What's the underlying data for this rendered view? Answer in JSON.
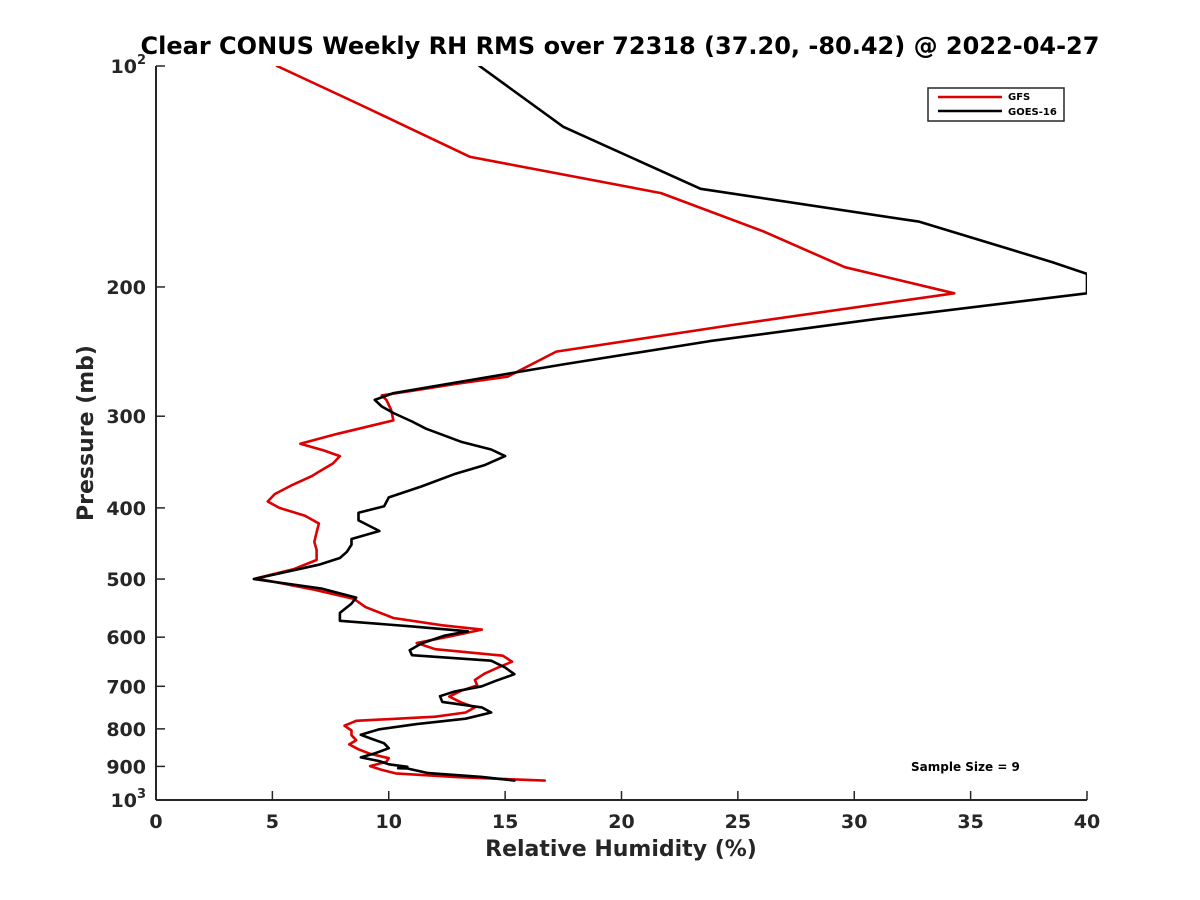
{
  "chart_data": {
    "type": "line",
    "title": "Clear CONUS Weekly RH RMS over 72318 (37.20, -80.42) @ 2022-04-27",
    "xlabel": "Relative Humidity (%)",
    "ylabel": "Pressure (mb)",
    "xlim": [
      0,
      40
    ],
    "ylim": [
      100,
      1000
    ],
    "y_scale": "log",
    "y_reversed": true,
    "x_ticks": [
      0,
      5,
      10,
      15,
      20,
      25,
      30,
      35,
      40
    ],
    "x_tick_labels": [
      "0",
      "5",
      "10",
      "15",
      "20",
      "25",
      "30",
      "35",
      "40"
    ],
    "y_ticks": [
      100,
      200,
      300,
      400,
      500,
      600,
      700,
      800,
      900,
      1000
    ],
    "y_tick_labels": [
      {
        "base": "10",
        "exp": "2"
      },
      {
        "base": "200",
        "exp": ""
      },
      {
        "base": "300",
        "exp": ""
      },
      {
        "base": "400",
        "exp": ""
      },
      {
        "base": "500",
        "exp": ""
      },
      {
        "base": "600",
        "exp": ""
      },
      {
        "base": "700",
        "exp": ""
      },
      {
        "base": "800",
        "exp": ""
      },
      {
        "base": "900",
        "exp": ""
      },
      {
        "base": "10",
        "exp": "3"
      }
    ],
    "grid": false,
    "legend_position": "top-right",
    "series": [
      {
        "name": "GFS",
        "color": "#dd0000",
        "points": [
          [
            16.7,
            941
          ],
          [
            13.0,
            931
          ],
          [
            10.3,
            920
          ],
          [
            9.7,
            910
          ],
          [
            9.2,
            899
          ],
          [
            9.9,
            887
          ],
          [
            10.0,
            877
          ],
          [
            9.2,
            865
          ],
          [
            8.7,
            853
          ],
          [
            8.3,
            840
          ],
          [
            8.6,
            829
          ],
          [
            8.4,
            816
          ],
          [
            8.4,
            804
          ],
          [
            8.1,
            792
          ],
          [
            8.6,
            780
          ],
          [
            12.0,
            770
          ],
          [
            13.3,
            760
          ],
          [
            13.7,
            748
          ],
          [
            13.1,
            736
          ],
          [
            12.6,
            723
          ],
          [
            13.1,
            710
          ],
          [
            13.8,
            698
          ],
          [
            13.7,
            686
          ],
          [
            14.1,
            673
          ],
          [
            14.7,
            660
          ],
          [
            15.3,
            648
          ],
          [
            14.9,
            636
          ],
          [
            12.0,
            623
          ],
          [
            11.2,
            611
          ],
          [
            12.7,
            598
          ],
          [
            14.0,
            586
          ],
          [
            12.3,
            578
          ],
          [
            10.2,
            565
          ],
          [
            9.0,
            546
          ],
          [
            8.5,
            532
          ],
          [
            6.8,
            517
          ],
          [
            4.3,
            499
          ],
          [
            5.9,
            485
          ],
          [
            6.9,
            471
          ],
          [
            6.9,
            456
          ],
          [
            6.8,
            445
          ],
          [
            6.9,
            432
          ],
          [
            7.0,
            420
          ],
          [
            6.4,
            410
          ],
          [
            5.3,
            400
          ],
          [
            4.8,
            392
          ],
          [
            5.1,
            383
          ],
          [
            5.8,
            373
          ],
          [
            6.7,
            362
          ],
          [
            7.0,
            357
          ],
          [
            7.6,
            348
          ],
          [
            7.9,
            340
          ],
          [
            7.2,
            334
          ],
          [
            6.2,
            327
          ],
          [
            7.8,
            317
          ],
          [
            10.2,
            304
          ],
          [
            10.1,
            294
          ],
          [
            9.9,
            285
          ],
          [
            9.7,
            281
          ],
          [
            11.0,
            277
          ],
          [
            12.9,
            271
          ],
          [
            15.1,
            265
          ],
          [
            17.2,
            245
          ],
          [
            24.9,
            225
          ],
          [
            34.3,
            204
          ],
          [
            29.6,
            188
          ],
          [
            26.1,
            168
          ],
          [
            21.7,
            149
          ],
          [
            13.5,
            133
          ],
          [
            8.8,
            113
          ],
          [
            5.2,
            100
          ]
        ]
      },
      {
        "name": "GOES-16",
        "color": "#000000",
        "points": [
          [
            15.4,
            941
          ],
          [
            14.0,
            930
          ],
          [
            11.7,
            919
          ],
          [
            10.8,
            906
          ],
          [
            10.4,
            905
          ],
          [
            10.8,
            901
          ],
          [
            10.0,
            894
          ],
          [
            9.6,
            885
          ],
          [
            8.8,
            875
          ],
          [
            9.4,
            864
          ],
          [
            10.0,
            850
          ],
          [
            9.8,
            837
          ],
          [
            9.3,
            826
          ],
          [
            8.8,
            815
          ],
          [
            9.6,
            801
          ],
          [
            11.2,
            788
          ],
          [
            13.3,
            775
          ],
          [
            14.4,
            760
          ],
          [
            14.0,
            748
          ],
          [
            12.3,
            735
          ],
          [
            12.2,
            722
          ],
          [
            12.8,
            712
          ],
          [
            14.0,
            700
          ],
          [
            14.6,
            688
          ],
          [
            15.4,
            674
          ],
          [
            15.0,
            660
          ],
          [
            14.4,
            646
          ],
          [
            11.0,
            635
          ],
          [
            10.9,
            625
          ],
          [
            11.4,
            612
          ],
          [
            12.4,
            597
          ],
          [
            13.4,
            589
          ],
          [
            11.0,
            580
          ],
          [
            7.9,
            570
          ],
          [
            7.9,
            556
          ],
          [
            8.4,
            540
          ],
          [
            8.6,
            530
          ],
          [
            7.1,
            515
          ],
          [
            4.2,
            500
          ],
          [
            7.0,
            478
          ],
          [
            7.9,
            468
          ],
          [
            8.2,
            459
          ],
          [
            8.4,
            449
          ],
          [
            8.4,
            441
          ],
          [
            9.6,
            430
          ],
          [
            8.7,
            416
          ],
          [
            8.7,
            406
          ],
          [
            9.8,
            398
          ],
          [
            10.0,
            387
          ],
          [
            11.4,
            374
          ],
          [
            12.8,
            360
          ],
          [
            14.1,
            350
          ],
          [
            15.0,
            340
          ],
          [
            14.4,
            333
          ],
          [
            13.1,
            325
          ],
          [
            11.6,
            312
          ],
          [
            11.0,
            305
          ],
          [
            10.2,
            297
          ],
          [
            9.7,
            291
          ],
          [
            9.4,
            285
          ],
          [
            10.2,
            279
          ],
          [
            17.5,
            255
          ],
          [
            23.8,
            237
          ],
          [
            31.0,
            221
          ],
          [
            40.0,
            204
          ],
          [
            40.0,
            192
          ],
          [
            38.5,
            185
          ],
          [
            32.8,
            163
          ],
          [
            23.4,
            147
          ],
          [
            17.5,
            121
          ],
          [
            13.9,
            100
          ]
        ]
      }
    ],
    "annotations": [
      {
        "text": "Sample Size = 9"
      }
    ]
  }
}
